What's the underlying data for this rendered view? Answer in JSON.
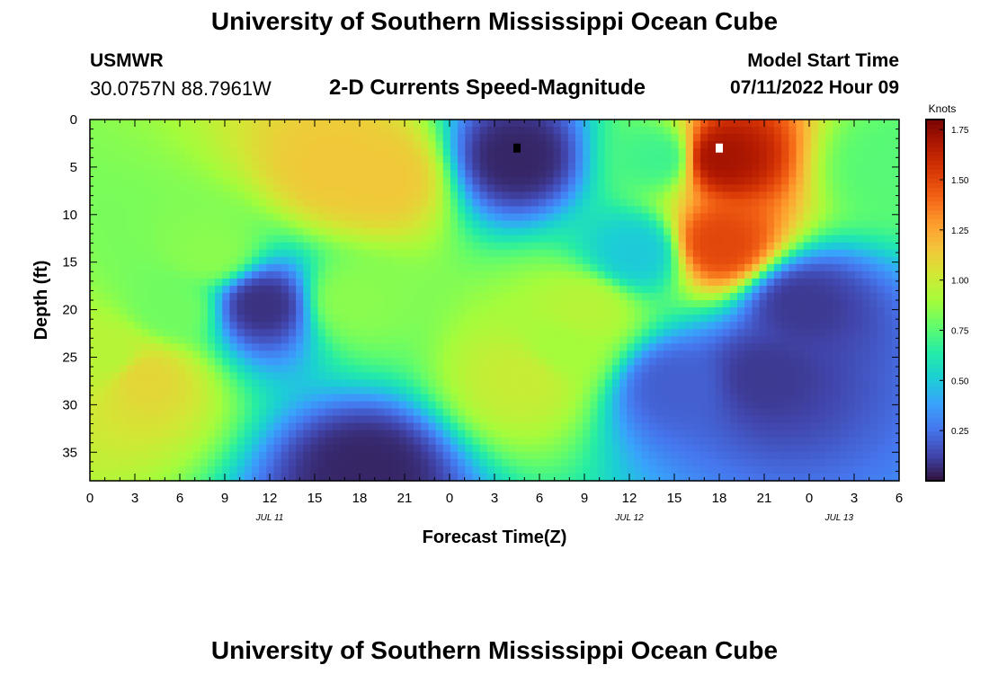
{
  "header": {
    "title": "University of Southern Mississippi Ocean Cube",
    "station": "USMWR",
    "coords": "30.0757N  88.7961W",
    "subtitle": "2-D Currents Speed-Magnitude",
    "model_start_label": "Model Start Time",
    "model_start_value": "07/11/2022 Hour 09"
  },
  "footer": {
    "title": "University of Southern Mississippi Ocean Cube"
  },
  "chart_data": {
    "type": "heatmap",
    "title": "2-D Currents Speed-Magnitude",
    "xlabel": "Forecast Time(Z)",
    "ylabel": "Depth (ft)",
    "x_ticks": [
      "0",
      "3",
      "6",
      "9",
      "12",
      "15",
      "18",
      "21",
      "0",
      "3",
      "6",
      "9",
      "12",
      "15",
      "18",
      "21",
      "0",
      "3",
      "6"
    ],
    "x_range_hours": [
      0,
      54
    ],
    "date_labels": [
      {
        "text": "JUL 11",
        "hour": 12
      },
      {
        "text": "JUL 12",
        "hour": 36
      },
      {
        "text": "JUL 13",
        "hour": 50
      }
    ],
    "y_ticks": [
      0,
      5,
      10,
      15,
      20,
      25,
      30,
      35
    ],
    "ylim": [
      0,
      38
    ],
    "colorbar": {
      "label": "Knots",
      "ticks": [
        "0.25",
        "0.50",
        "0.75",
        "1.00",
        "1.25",
        "1.50",
        "1.75"
      ],
      "range": [
        0.0,
        1.8
      ],
      "colormap": [
        "#30123b",
        "#4145ab",
        "#4675ed",
        "#39a2fc",
        "#1bcfd4",
        "#24eca6",
        "#61fc6c",
        "#a4fc3b",
        "#d1e834",
        "#f3c63a",
        "#fe9b2d",
        "#f36315",
        "#d93806",
        "#b11901",
        "#7a0402"
      ]
    },
    "features": [
      {
        "hour": 3.5,
        "depth": 27,
        "speed": 1.1
      },
      {
        "hour": 1.5,
        "depth": 25,
        "speed": 0.95
      },
      {
        "hour": 8,
        "depth": 14,
        "speed": 0.85
      },
      {
        "hour": 5.5,
        "depth": 20,
        "speed": 0.8
      },
      {
        "hour": 11.5,
        "depth": 19.5,
        "speed": 0.08
      },
      {
        "hour": 16.5,
        "depth": 5,
        "speed": 1.15
      },
      {
        "hour": 19.5,
        "depth": 6,
        "speed": 1.15
      },
      {
        "hour": 17.5,
        "depth": 19,
        "speed": 0.85
      },
      {
        "hour": 18.5,
        "depth": 37,
        "speed": 0.05
      },
      {
        "hour": 28.5,
        "depth": 4,
        "speed": 0.05
      },
      {
        "hour": 29,
        "depth": 27,
        "speed": 1.0
      },
      {
        "hour": 33,
        "depth": 20,
        "speed": 0.95
      },
      {
        "hour": 31.5,
        "depth": 24,
        "speed": 0.9
      },
      {
        "hour": 42,
        "depth": 4,
        "speed": 1.7
      },
      {
        "hour": 42,
        "depth": 13,
        "speed": 1.5
      },
      {
        "hour": 47.5,
        "depth": 19.5,
        "speed": 0.1
      },
      {
        "hour": 45,
        "depth": 27,
        "speed": 0.1
      },
      {
        "hour": 39,
        "depth": 28,
        "speed": 0.2
      },
      {
        "hour": 53.5,
        "depth": 5,
        "speed": 0.75
      },
      {
        "hour": 38,
        "depth": 4,
        "speed": 0.7
      },
      {
        "hour": 36.5,
        "depth": 14,
        "speed": 0.5
      }
    ],
    "markers": [
      {
        "hour": 28.5,
        "depth": 3,
        "color": "#000000"
      },
      {
        "hour": 42,
        "depth": 3,
        "color": "#ffffff"
      }
    ]
  }
}
